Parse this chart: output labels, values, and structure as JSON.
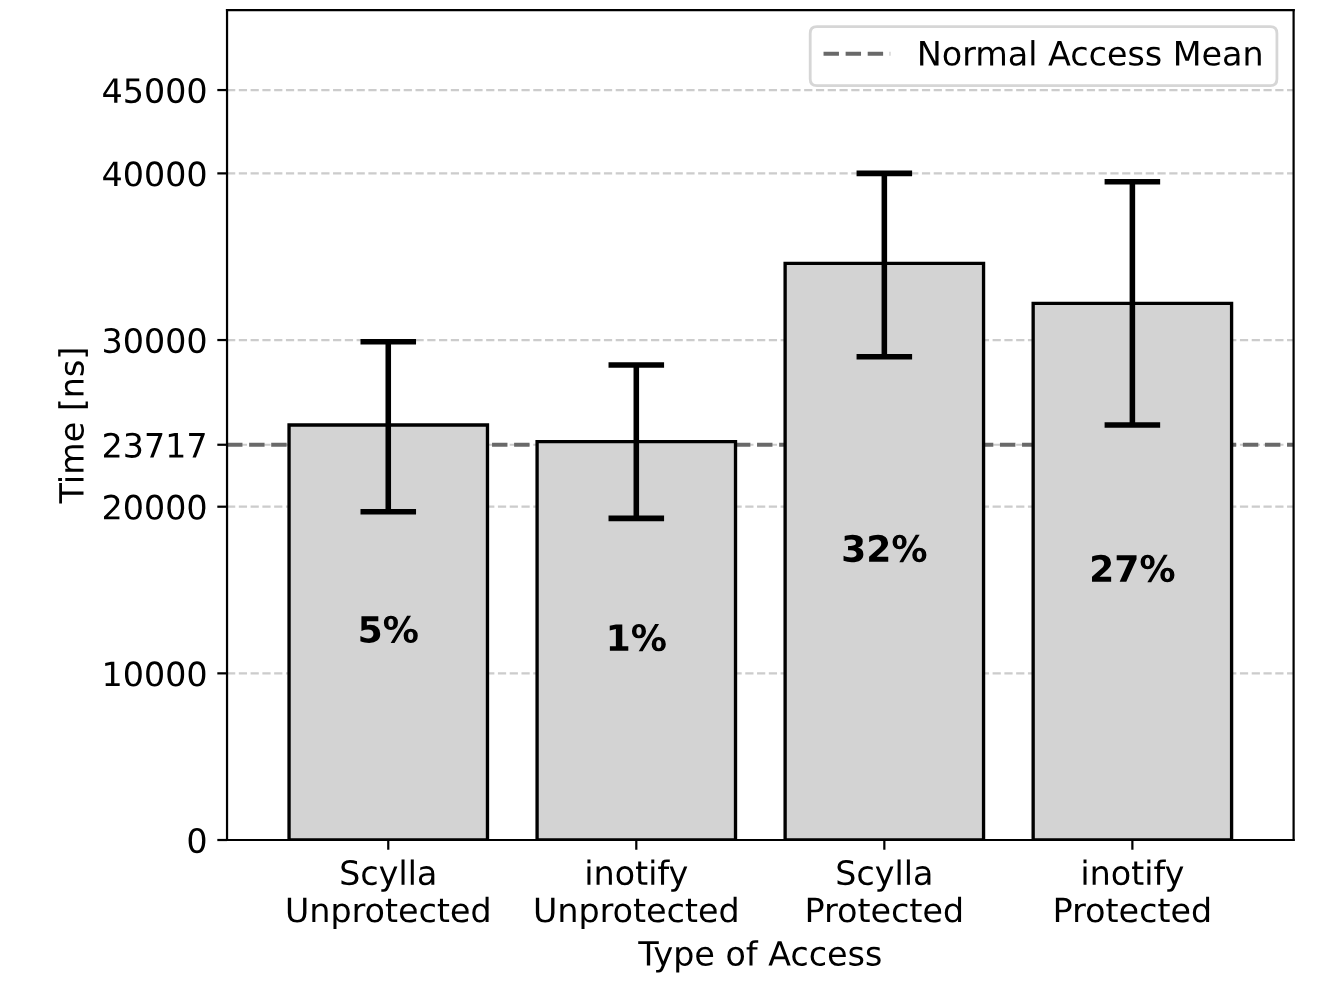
{
  "chart_data": {
    "type": "bar",
    "xlabel": "Type of Access",
    "ylabel": "Time [ns]",
    "categories": [
      "Scylla\nUnprotected",
      "inotify\nUnprotected",
      "Scylla\nProtected",
      "inotify\nProtected"
    ],
    "values": [
      24900,
      23900,
      34600,
      32200
    ],
    "errors": [
      [
        19700,
        29900
      ],
      [
        19300,
        28500
      ],
      [
        29000,
        40000
      ],
      [
        24900,
        39500
      ]
    ],
    "annotations": [
      "5%",
      "1%",
      "32%",
      "27%"
    ],
    "color": "#d3d3d3",
    "ylim": [
      0,
      49800
    ],
    "yticks": [
      0,
      10000,
      20000,
      23717,
      30000,
      40000,
      45000
    ],
    "grid": "y",
    "ref_lines": [
      {
        "axis": "y",
        "value": 23717,
        "label": "Normal Access Mean",
        "color": "#696969",
        "line_style": "dashed"
      }
    ],
    "legend": "top right"
  }
}
